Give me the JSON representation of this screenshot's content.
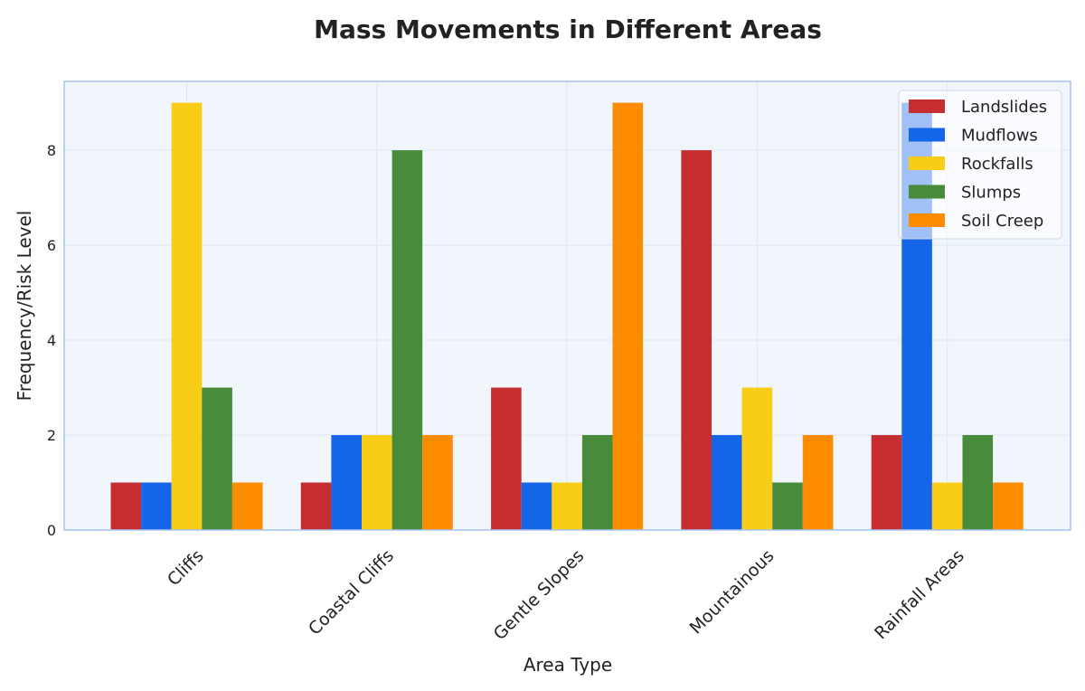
{
  "chart_data": {
    "type": "bar",
    "title": "Mass Movements in Different Areas",
    "xlabel": "Area Type",
    "ylabel": "Frequency/Risk Level",
    "categories": [
      "Cliffs",
      "Coastal Cliffs",
      "Gentle Slopes",
      "Mountainous",
      "Rainfall Areas"
    ],
    "series": [
      {
        "name": "Landslides",
        "color": "#c62d31",
        "values": [
          1,
          1,
          3,
          8,
          2
        ]
      },
      {
        "name": "Mudflows",
        "color": "#1565e9",
        "values": [
          1,
          2,
          1,
          2,
          9
        ]
      },
      {
        "name": "Rockfalls",
        "color": "#f9cc17",
        "values": [
          9,
          2,
          1,
          3,
          1
        ]
      },
      {
        "name": "Slumps",
        "color": "#478b3b",
        "values": [
          3,
          8,
          2,
          1,
          2
        ]
      },
      {
        "name": "Soil Creep",
        "color": "#fb8c00",
        "values": [
          1,
          2,
          9,
          2,
          1
        ]
      }
    ],
    "ylim": [
      0,
      9.45
    ],
    "yticks": [
      0,
      2,
      4,
      6,
      8
    ],
    "grid": true,
    "legend_position": "top-right",
    "plot_background": "#f1f6fd",
    "frame_color": "#a6c4ef"
  }
}
